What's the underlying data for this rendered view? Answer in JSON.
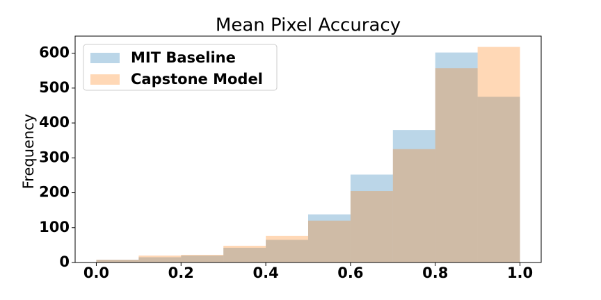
{
  "chart_data": {
    "type": "histogram",
    "title": "Mean Pixel Accuracy",
    "ylabel": "Frequency",
    "bins": [
      0,
      0.1,
      0.2,
      0.3,
      0.4,
      0.5,
      0.6,
      0.7,
      0.8,
      0.9,
      1
    ],
    "series": [
      {
        "name": "MIT Baseline",
        "color": "#1f77b4",
        "values": [
          8,
          15,
          20,
          42,
          65,
          138,
          252,
          380,
          602,
          475
        ]
      },
      {
        "name": "Capstone Model",
        "color": "#ff7f0e",
        "values": [
          8,
          20,
          22,
          48,
          76,
          120,
          205,
          325,
          557,
          618
        ]
      }
    ],
    "xlim": [
      -0.05,
      1.05
    ],
    "ylim": [
      0,
      649
    ],
    "xticks": [
      {
        "value": 0,
        "label": "0.0"
      },
      0.2,
      0.4,
      0.6,
      0.8,
      {
        "value": 1,
        "label": "1.0"
      }
    ],
    "yticks": [
      0,
      100,
      200,
      300,
      400,
      500,
      600
    ],
    "legend": "upper left",
    "alpha": 0.3
  }
}
